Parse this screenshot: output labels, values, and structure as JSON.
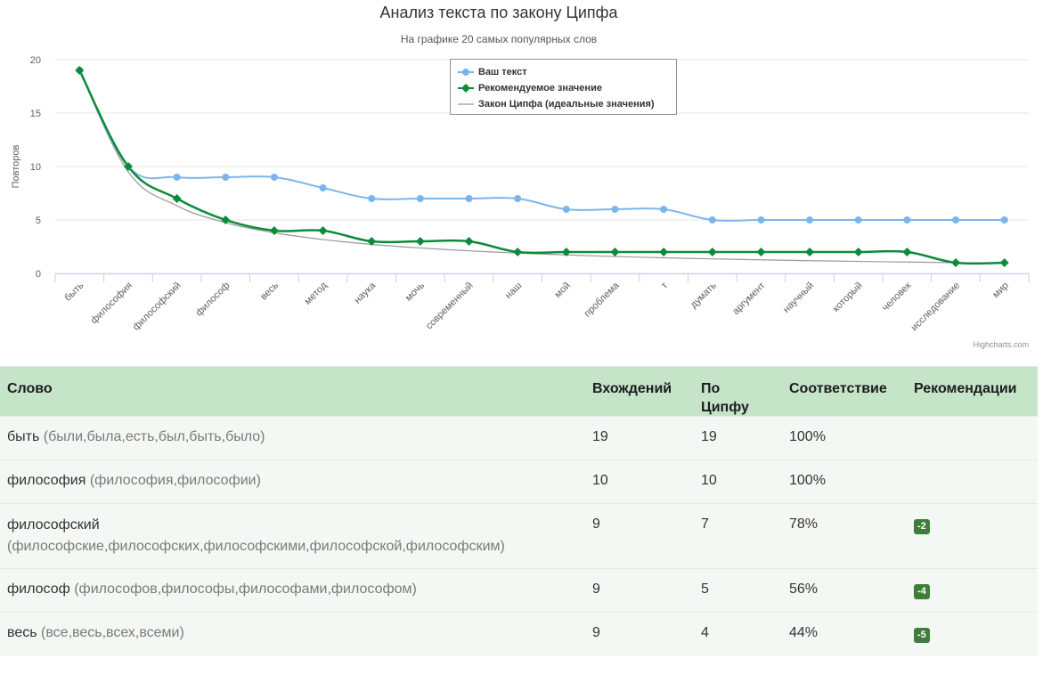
{
  "chart_data": {
    "type": "line",
    "title": "Анализ текста по закону Ципфа",
    "subtitle": "На графике 20 самых популярных слов",
    "ylabel": "Повторов",
    "ylim": [
      0,
      20
    ],
    "yticks": [
      0,
      5,
      10,
      15,
      20
    ],
    "categories": [
      "быть",
      "философия",
      "философский",
      "философ",
      "весь",
      "метод",
      "наука",
      "мочь",
      "современный",
      "наш",
      "мой",
      "проблема",
      "т",
      "думать",
      "аргумент",
      "научный",
      "который",
      "человек",
      "исследование",
      "мир"
    ],
    "series": [
      {
        "name": "Ваш текст",
        "color": "#7cb5ec",
        "values": [
          19,
          10,
          9,
          9,
          9,
          8,
          7,
          7,
          7,
          7,
          6,
          6,
          6,
          5,
          5,
          5,
          5,
          5,
          5,
          5
        ]
      },
      {
        "name": "Рекомендуемое значение",
        "color": "#0d8b3a",
        "values": [
          19,
          10,
          7,
          5,
          4,
          4,
          3,
          3,
          3,
          2,
          2,
          2,
          2,
          2,
          2,
          2,
          2,
          2,
          1,
          1
        ]
      },
      {
        "name": "Закон Ципфа (идеальные значения)",
        "color": "#999999",
        "values": [
          19,
          9.5,
          6.33,
          4.75,
          3.8,
          3.17,
          2.71,
          2.38,
          2.11,
          1.9,
          1.73,
          1.58,
          1.46,
          1.36,
          1.27,
          1.19,
          1.12,
          1.06,
          1.0,
          0.95
        ]
      }
    ],
    "legend": "top-center",
    "grid": true,
    "credits": "Highcharts.com"
  },
  "table": {
    "headers": {
      "word": "Слово",
      "count": "Вхождений",
      "zipf_1": "По",
      "zipf_2": "Ципфу",
      "match": "Соответствие",
      "recommend": "Рекомендации"
    },
    "rows": [
      {
        "word": "быть",
        "forms": "(были,была,есть,был,быть,было)",
        "count": "19",
        "zipf": "19",
        "match": "100%",
        "recommend": ""
      },
      {
        "word": "философия",
        "forms": "(философия,философии)",
        "count": "10",
        "zipf": "10",
        "match": "100%",
        "recommend": ""
      },
      {
        "word": "философский",
        "forms": "(философские,философских,философскими,философской,философским)",
        "count": "9",
        "zipf": "7",
        "match": "78%",
        "recommend": "-2"
      },
      {
        "word": "философ",
        "forms": "(философов,философы,философами,философом)",
        "count": "9",
        "zipf": "5",
        "match": "56%",
        "recommend": "-4"
      },
      {
        "word": "весь",
        "forms": "(все,весь,всех,всеми)",
        "count": "9",
        "zipf": "4",
        "match": "44%",
        "recommend": "-5"
      }
    ]
  }
}
